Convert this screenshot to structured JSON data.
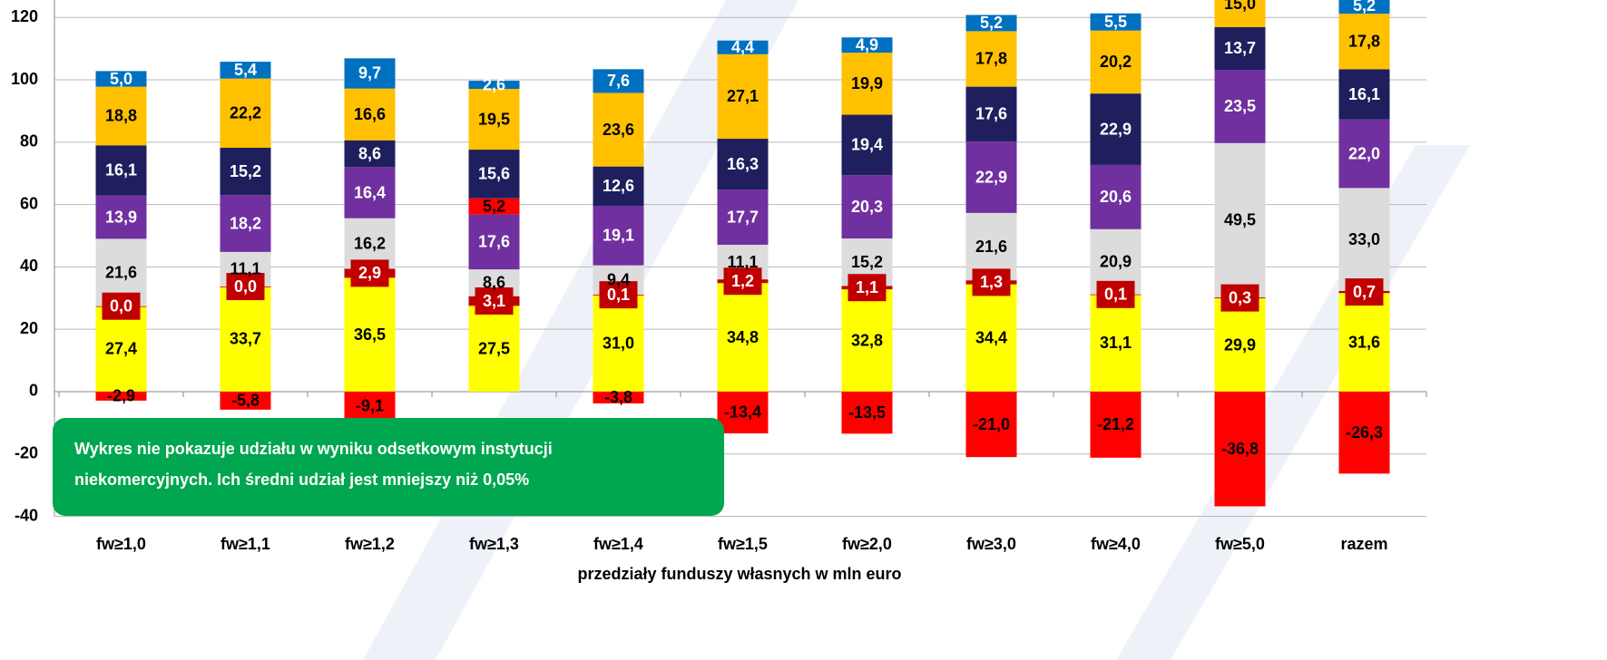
{
  "chart_data": {
    "type": "stacked_bar",
    "x_label": "przedziały funduszy własnych w mln euro",
    "annotation": [
      "Wykres nie pokazuje udziału w wyniku odsetkowym instytucji",
      "niekomercyjnych. Ich średni udział jest mniejszy niż 0,05%"
    ],
    "categories": [
      "fw≥1,0",
      "fw≥1,1",
      "fw≥1,2",
      "fw≥1,3",
      "fw≥1,4",
      "fw≥1,5",
      "fw≥2,0",
      "fw≥3,0",
      "fw≥4,0",
      "fw≥5,0",
      "razem"
    ],
    "ylim": [
      -40,
      125.6
    ],
    "yticks": [
      -40,
      -20,
      0,
      20,
      40,
      60,
      80,
      100,
      120
    ],
    "grid": true,
    "series": [
      {
        "color": "#ffff00",
        "values": [
          27.4,
          33.7,
          36.5,
          27.5,
          31.0,
          34.8,
          32.8,
          34.4,
          31.1,
          29.9,
          31.6
        ],
        "value_labels": [
          "27,4",
          "33,7",
          "36,5",
          "27,5",
          "31,0",
          "34,8",
          "32,8",
          "34,4",
          "31,1",
          "29,9",
          "31,6"
        ]
      },
      {
        "color": "#c00000",
        "values": [
          0.0,
          0.0,
          2.9,
          3.1,
          0.1,
          1.2,
          1.1,
          1.3,
          0.1,
          0.3,
          0.7
        ],
        "value_labels": [
          "0,0",
          "0,0",
          "2,9",
          "3,1",
          "0,1",
          "1,2",
          "1,1",
          "1,3",
          "0,1",
          "0,3",
          "0,7"
        ]
      },
      {
        "color": "#dcdcdc",
        "values": [
          21.6,
          11.1,
          16.2,
          8.6,
          9.4,
          11.1,
          15.2,
          21.6,
          20.9,
          49.5,
          33.0
        ],
        "value_labels": [
          "21,6",
          "11,1",
          "16,2",
          "8,6",
          "9,4",
          "11,1",
          "15,2",
          "21,6",
          "20,9",
          "49,5",
          "33,0"
        ]
      },
      {
        "color": "#7030a0",
        "values": [
          13.9,
          18.2,
          16.4,
          17.6,
          19.1,
          17.7,
          20.3,
          22.9,
          20.6,
          23.5,
          22.0
        ],
        "value_labels": [
          "13,9",
          "18,2",
          "16,4",
          "17,6",
          "19,1",
          "17,7",
          "20,3",
          "22,9",
          "20,6",
          "23,5",
          "22,0"
        ]
      },
      {
        "color": "#ff0000",
        "values": [
          -2.9,
          -5.8,
          -9.1,
          5.2,
          -3.8,
          -13.4,
          -13.5,
          -21.0,
          -21.2,
          -36.8,
          -26.3
        ],
        "value_labels": [
          "-2,9",
          "-5,8",
          "-9,1",
          "5,2",
          "-3,8",
          "-13,4",
          "-13,5",
          "-21,0",
          "-21,2",
          "-36,8",
          "-26,3"
        ]
      },
      {
        "color": "#1f1f5e",
        "values": [
          16.1,
          15.2,
          8.6,
          15.6,
          12.6,
          16.3,
          19.4,
          17.6,
          22.9,
          13.7,
          16.1
        ],
        "value_labels": [
          "16,1",
          "15,2",
          "8,6",
          "15,6",
          "12,6",
          "16,3",
          "19,4",
          "17,6",
          "22,9",
          "13,7",
          "16,1"
        ]
      },
      {
        "color": "#ffc000",
        "values": [
          18.8,
          22.2,
          16.6,
          19.5,
          23.6,
          27.1,
          19.9,
          17.8,
          20.2,
          15.0,
          17.8
        ],
        "value_labels": [
          "18,8",
          "22,2",
          "16,6",
          "19,5",
          "23,6",
          "27,1",
          "19,9",
          "17,8",
          "20,2",
          "15,0",
          "17,8"
        ]
      },
      {
        "color": "#0070c0",
        "values": [
          5.0,
          5.4,
          9.7,
          2.6,
          7.6,
          4.4,
          4.9,
          5.2,
          5.5,
          null,
          5.2
        ],
        "value_labels": [
          "5,0",
          "5,4",
          "9,7",
          "2,6",
          "7,6",
          "4,4",
          "4,9",
          "5,2",
          "5,5",
          null,
          "5,2"
        ]
      }
    ]
  }
}
